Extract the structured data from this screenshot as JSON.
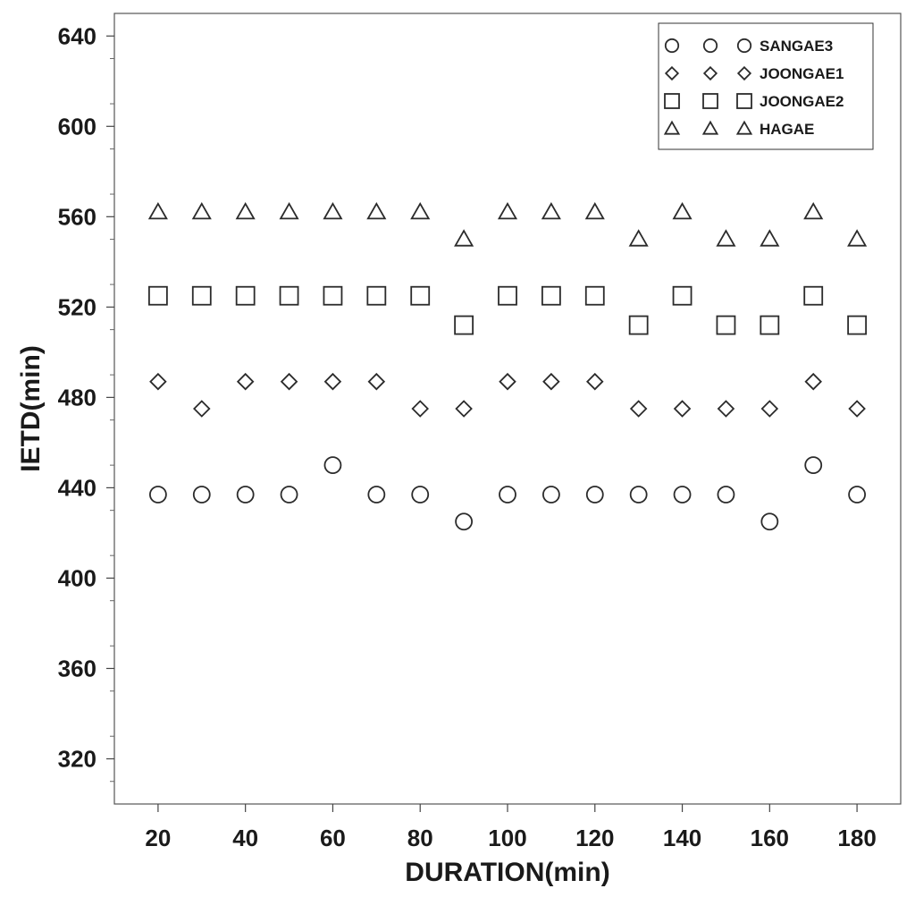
{
  "chart_data": {
    "type": "scatter",
    "xlabel": "DURATION(min)",
    "ylabel": "IETD(min)",
    "xlim": [
      10,
      190
    ],
    "ylim": [
      300,
      650
    ],
    "xticks": [
      20,
      40,
      60,
      80,
      100,
      120,
      140,
      160,
      180
    ],
    "yticks": [
      320,
      360,
      400,
      440,
      480,
      520,
      560,
      600,
      640
    ],
    "legend_position": "top-right",
    "grid": false,
    "x": [
      20,
      30,
      40,
      50,
      60,
      70,
      80,
      90,
      100,
      110,
      120,
      130,
      140,
      150,
      160,
      170,
      180
    ],
    "series": [
      {
        "name": "SANGAE3",
        "marker": "circle",
        "values": [
          437,
          437,
          437,
          437,
          450,
          437,
          437,
          425,
          437,
          437,
          437,
          437,
          437,
          437,
          425,
          450,
          437
        ]
      },
      {
        "name": "JOONGAE1",
        "marker": "diamond",
        "values": [
          487,
          475,
          487,
          487,
          487,
          487,
          475,
          475,
          487,
          487,
          487,
          475,
          475,
          475,
          475,
          487,
          475
        ]
      },
      {
        "name": "JOONGAE2",
        "marker": "square",
        "values": [
          525,
          525,
          525,
          525,
          525,
          525,
          525,
          512,
          525,
          525,
          525,
          512,
          525,
          512,
          512,
          525,
          512
        ]
      },
      {
        "name": "HAGAE",
        "marker": "triangle",
        "values": [
          562,
          562,
          562,
          562,
          562,
          562,
          562,
          550,
          562,
          562,
          562,
          550,
          562,
          550,
          550,
          562,
          550
        ]
      }
    ]
  }
}
